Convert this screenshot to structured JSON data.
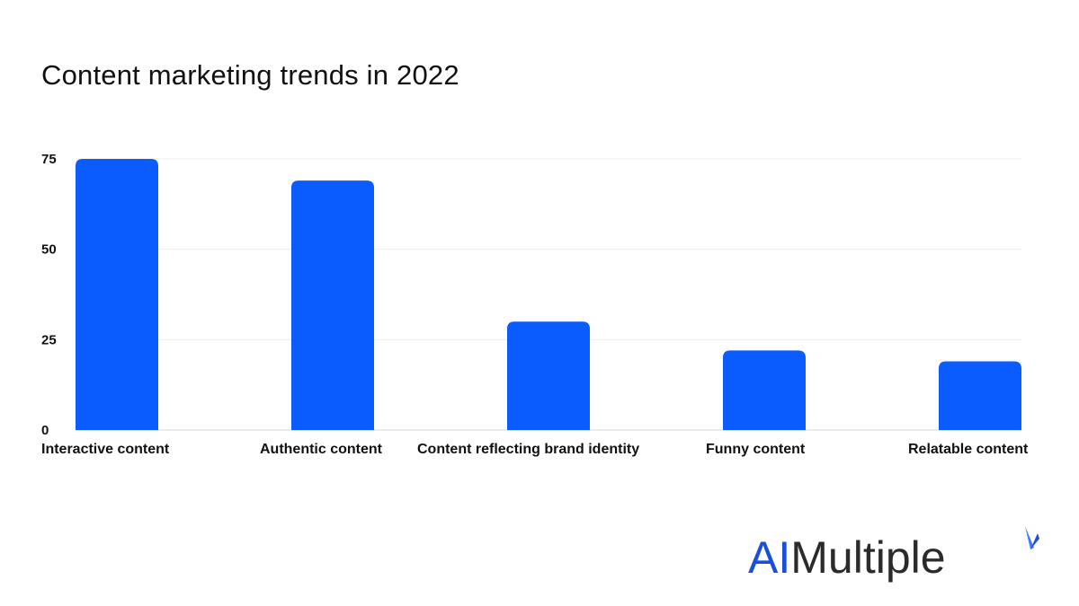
{
  "chart_data": {
    "type": "bar",
    "title": "Content marketing trends in 2022",
    "categories": [
      "Interactive content",
      "Authentic content",
      "Content reflecting brand identity",
      "Funny content",
      "Relatable content"
    ],
    "values": [
      75,
      69,
      30,
      22,
      19
    ],
    "yticks": [
      0,
      25,
      50,
      75
    ],
    "ylim": [
      0,
      75
    ],
    "xlabel": "",
    "ylabel": "",
    "grid": true,
    "bar_color": "#0a5cff"
  },
  "logo": {
    "ai": "AI",
    "rest": "Multiple",
    "ai_color": "#1a4fd8",
    "rest_color": "#2b2b2b"
  }
}
